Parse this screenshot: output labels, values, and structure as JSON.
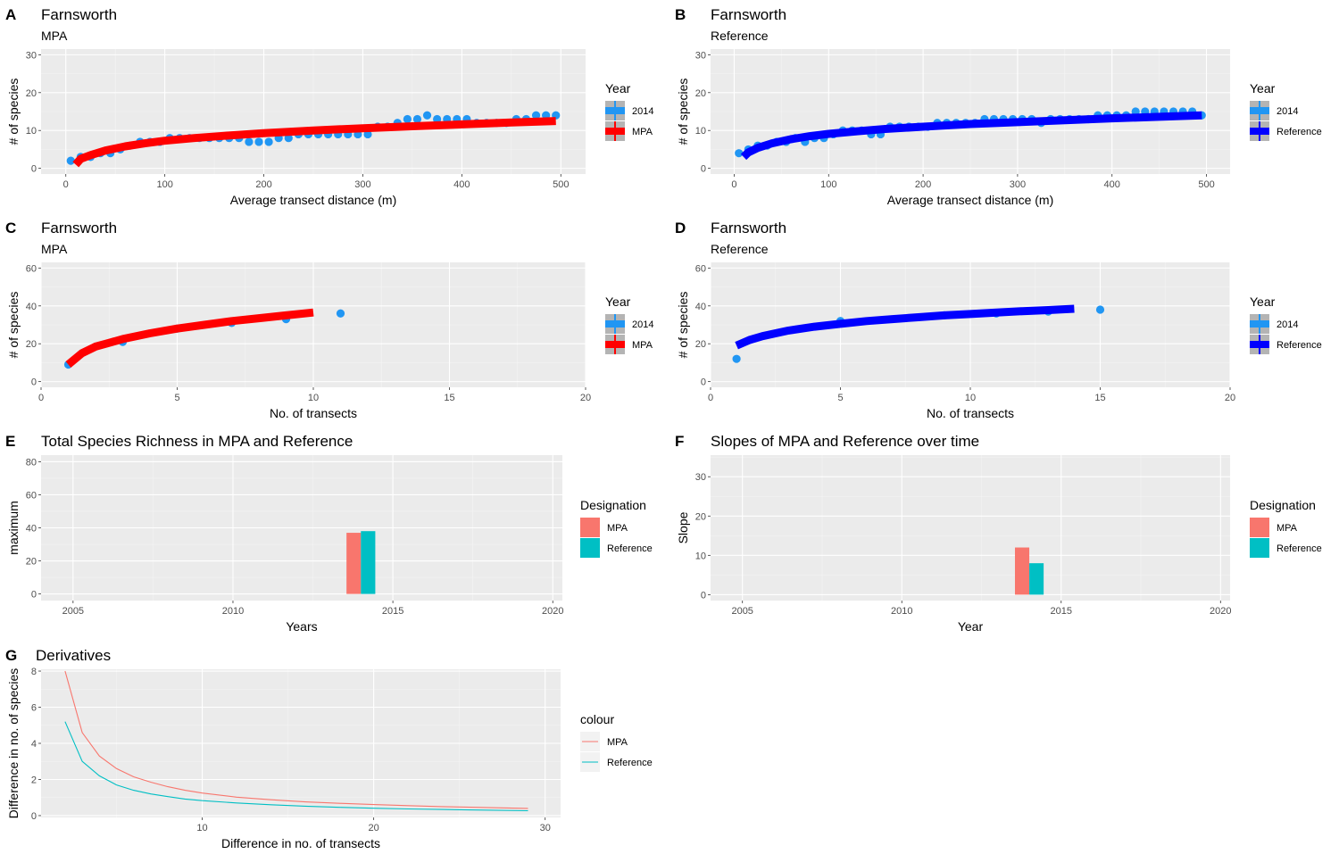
{
  "colors": {
    "panel_bg": "#EBEBEB",
    "grid_major": "#FFFFFF",
    "grid_minor": "#F4F4F4",
    "points_2014": "#2196F3",
    "mpa_line": "#FF0000",
    "reference_line": "#0000FF",
    "designation_mpa": "#F8766D",
    "designation_reference": "#00BFC4",
    "legend_key_bg": "#B4B4B4",
    "text_dark": "#000000",
    "text_axis": "#4D4D4D"
  },
  "chart_data": [
    {
      "id": "A",
      "tag": "A",
      "type": "scatter",
      "title": "Farnsworth",
      "subtitle": "MPA",
      "xlabel": "Average transect distance (m)",
      "ylabel": "# of species",
      "xlim": [
        -25,
        525
      ],
      "ylim": [
        -1.5,
        31.5
      ],
      "xticks": [
        0,
        100,
        200,
        300,
        400,
        500
      ],
      "xtick_labels": [
        "0",
        "100",
        "200",
        "300",
        "400",
        "500"
      ],
      "yticks": [
        0,
        10,
        20,
        30
      ],
      "ytick_labels": [
        "0",
        "10",
        "20",
        "30"
      ],
      "grid": true,
      "legend": {
        "title": "Year",
        "position": "right",
        "entries": [
          {
            "label": "2014",
            "kind": "point",
            "color": "#2196F3"
          },
          {
            "label": "MPA",
            "kind": "line",
            "color": "#FF0000"
          }
        ]
      },
      "points": {
        "name": "2014",
        "x": [
          5,
          15,
          25,
          35,
          45,
          55,
          65,
          75,
          85,
          95,
          105,
          115,
          125,
          135,
          145,
          155,
          165,
          175,
          185,
          195,
          205,
          215,
          225,
          235,
          245,
          255,
          265,
          275,
          285,
          295,
          305,
          315,
          325,
          335,
          345,
          355,
          365,
          375,
          385,
          395,
          405,
          415,
          425,
          435,
          445,
          455,
          465,
          475,
          485,
          495
        ],
        "y": [
          2,
          3,
          3,
          4,
          4,
          5,
          6,
          7,
          7,
          7,
          8,
          8,
          8,
          8,
          8,
          8,
          8,
          8,
          7,
          7,
          7,
          8,
          8,
          9,
          9,
          9,
          9,
          9,
          9,
          9,
          9,
          11,
          11,
          12,
          13,
          13,
          14,
          13,
          13,
          13,
          13,
          12,
          12,
          12,
          12,
          13,
          13,
          14,
          14,
          14
        ]
      },
      "curve": {
        "name": "MPA",
        "x": [
          10,
          15,
          25,
          40,
          60,
          80,
          100,
          130,
          160,
          200,
          250,
          300,
          350,
          400,
          450,
          495
        ],
        "y": [
          1,
          2.5,
          3.5,
          4.7,
          5.8,
          6.6,
          7.3,
          8,
          8.6,
          9.3,
          10,
          10.6,
          11.1,
          11.6,
          12.1,
          12.5
        ]
      }
    },
    {
      "id": "B",
      "tag": "B",
      "type": "scatter",
      "title": "Farnsworth",
      "subtitle": "Reference",
      "xlabel": "Average transect distance (m)",
      "ylabel": "# of species",
      "xlim": [
        -25,
        525
      ],
      "ylim": [
        -1.5,
        31.5
      ],
      "xticks": [
        0,
        100,
        200,
        300,
        400,
        500
      ],
      "xtick_labels": [
        "0",
        "100",
        "200",
        "300",
        "400",
        "500"
      ],
      "yticks": [
        0,
        10,
        20,
        30
      ],
      "ytick_labels": [
        "0",
        "10",
        "20",
        "30"
      ],
      "grid": true,
      "legend": {
        "title": "Year",
        "position": "right",
        "entries": [
          {
            "label": "2014",
            "kind": "point",
            "color": "#2196F3"
          },
          {
            "label": "Reference",
            "kind": "line",
            "color": "#0000FF"
          }
        ]
      },
      "points": {
        "name": "2014",
        "x": [
          5,
          15,
          25,
          35,
          45,
          55,
          65,
          75,
          85,
          95,
          105,
          115,
          125,
          135,
          145,
          155,
          165,
          175,
          185,
          195,
          205,
          215,
          225,
          235,
          245,
          255,
          265,
          275,
          285,
          295,
          305,
          315,
          325,
          335,
          345,
          355,
          365,
          375,
          385,
          395,
          405,
          415,
          425,
          435,
          445,
          455,
          465,
          475,
          485,
          495
        ],
        "y": [
          4,
          5,
          6,
          6,
          7,
          7,
          8,
          7,
          8,
          8,
          9,
          10,
          10,
          10,
          9,
          9,
          11,
          11,
          11,
          11,
          11,
          12,
          12,
          12,
          12,
          12,
          13,
          13,
          13,
          13,
          13,
          13,
          12,
          13,
          13,
          13,
          13,
          13,
          14,
          14,
          14,
          14,
          15,
          15,
          15,
          15,
          15,
          15,
          15,
          14
        ]
      },
      "curve": {
        "name": "Reference",
        "x": [
          10,
          15,
          25,
          40,
          60,
          80,
          100,
          130,
          160,
          200,
          250,
          300,
          350,
          400,
          450,
          495
        ],
        "y": [
          3,
          4.2,
          5.4,
          6.6,
          7.7,
          8.5,
          9.1,
          9.8,
          10.4,
          11,
          11.7,
          12.2,
          12.7,
          13.2,
          13.6,
          14
        ]
      }
    },
    {
      "id": "C",
      "tag": "C",
      "type": "scatter",
      "title": "Farnsworth",
      "subtitle": "MPA",
      "xlabel": "No. of transects",
      "ylabel": "# of species",
      "xlim": [
        0,
        20
      ],
      "ylim": [
        -3,
        63
      ],
      "xticks": [
        0,
        5,
        10,
        15,
        20
      ],
      "xtick_labels": [
        "0",
        "5",
        "10",
        "15",
        "20"
      ],
      "yticks": [
        0,
        20,
        40,
        60
      ],
      "ytick_labels": [
        "0",
        "20",
        "40",
        "60"
      ],
      "grid": true,
      "legend": {
        "title": "Year",
        "position": "right",
        "entries": [
          {
            "label": "2014",
            "kind": "point",
            "color": "#2196F3"
          },
          {
            "label": "MPA",
            "kind": "line",
            "color": "#FF0000"
          }
        ]
      },
      "points": {
        "name": "2014",
        "x": [
          1,
          3,
          5,
          7,
          9,
          11
        ],
        "y": [
          9,
          21,
          28,
          31,
          33,
          36
        ]
      },
      "curve": {
        "name": "MPA",
        "x": [
          1,
          1.5,
          2,
          2.5,
          3,
          4,
          5,
          6,
          7,
          8,
          9,
          10
        ],
        "y": [
          9,
          15,
          18.5,
          20.5,
          22.5,
          25.5,
          28,
          30,
          32,
          33.5,
          35,
          36.5
        ]
      }
    },
    {
      "id": "D",
      "tag": "D",
      "type": "scatter",
      "title": "Farnsworth",
      "subtitle": "Reference",
      "xlabel": "No. of transects",
      "ylabel": "# of species",
      "xlim": [
        0,
        20
      ],
      "ylim": [
        -3,
        63
      ],
      "xticks": [
        0,
        5,
        10,
        15,
        20
      ],
      "xtick_labels": [
        "0",
        "5",
        "10",
        "15",
        "20"
      ],
      "yticks": [
        0,
        20,
        40,
        60
      ],
      "ytick_labels": [
        "0",
        "20",
        "40",
        "60"
      ],
      "grid": true,
      "legend": {
        "title": "Year",
        "position": "right",
        "entries": [
          {
            "label": "2014",
            "kind": "point",
            "color": "#2196F3"
          },
          {
            "label": "Reference",
            "kind": "line",
            "color": "#0000FF"
          }
        ]
      },
      "points": {
        "name": "2014",
        "x": [
          1,
          5,
          9,
          11,
          13,
          15
        ],
        "y": [
          12,
          32,
          35,
          36,
          37,
          38
        ]
      },
      "curve": {
        "name": "Reference",
        "x": [
          1,
          1.5,
          2,
          3,
          4,
          5,
          6,
          7,
          8,
          9,
          10,
          11,
          12,
          13,
          14
        ],
        "y": [
          19,
          22,
          24,
          27,
          29,
          30.5,
          32,
          33,
          34,
          35,
          35.7,
          36.5,
          37.2,
          37.8,
          38.5
        ]
      }
    },
    {
      "id": "E",
      "tag": "E",
      "type": "bar",
      "title": "Total Species Richness in MPA and Reference",
      "subtitle": "",
      "xlabel": "Years",
      "ylabel": "maximum",
      "xlim": [
        2004,
        2020.3
      ],
      "ylim": [
        -4,
        84
      ],
      "xticks": [
        2005,
        2010,
        2015,
        2020
      ],
      "xtick_labels": [
        "2005",
        "2010",
        "2015",
        "2020"
      ],
      "yticks": [
        0,
        20,
        40,
        60,
        80
      ],
      "ytick_labels": [
        "0",
        "20",
        "40",
        "60",
        "80"
      ],
      "grid": true,
      "legend": {
        "title": "Designation",
        "position": "right",
        "entries": [
          {
            "label": "MPA",
            "kind": "fill",
            "color": "#F8766D"
          },
          {
            "label": "Reference",
            "kind": "fill",
            "color": "#00BFC4"
          }
        ]
      },
      "categories": [
        2014
      ],
      "series": [
        {
          "name": "MPA",
          "values": [
            37
          ],
          "color": "#F8766D"
        },
        {
          "name": "Reference",
          "values": [
            38
          ],
          "color": "#00BFC4"
        }
      ],
      "bar_width": 0.45
    },
    {
      "id": "F",
      "tag": "F",
      "type": "bar",
      "title": "Slopes of MPA and Reference over time",
      "subtitle": "",
      "xlabel": "Year",
      "ylabel": "Slope",
      "xlim": [
        2004,
        2020.3
      ],
      "ylim": [
        -1.5,
        35.5
      ],
      "xticks": [
        2005,
        2010,
        2015,
        2020
      ],
      "xtick_labels": [
        "2005",
        "2010",
        "2015",
        "2020"
      ],
      "yticks": [
        0,
        10,
        20,
        30
      ],
      "ytick_labels": [
        "0",
        "10",
        "20",
        "30"
      ],
      "grid": true,
      "legend": {
        "title": "Designation",
        "position": "right",
        "entries": [
          {
            "label": "MPA",
            "kind": "fill",
            "color": "#F8766D"
          },
          {
            "label": "Reference",
            "kind": "fill",
            "color": "#00BFC4"
          }
        ]
      },
      "categories": [
        2014
      ],
      "series": [
        {
          "name": "MPA",
          "values": [
            12
          ],
          "color": "#F8766D"
        },
        {
          "name": "Reference",
          "values": [
            8
          ],
          "color": "#00BFC4"
        }
      ],
      "bar_width": 0.45
    },
    {
      "id": "G",
      "tag": "G",
      "type": "line",
      "title": "Derivatives",
      "subtitle": "",
      "xlabel": "Difference in no. of transects",
      "ylabel": "Difference in no. of species",
      "xlim": [
        0.6,
        30.9
      ],
      "ylim": [
        -0.1,
        8.1
      ],
      "xticks": [
        10,
        20,
        30
      ],
      "xtick_labels": [
        "10",
        "20",
        "30"
      ],
      "yticks": [
        0,
        2,
        4,
        6,
        8
      ],
      "ytick_labels": [
        "0",
        "2",
        "4",
        "6",
        "8"
      ],
      "grid": true,
      "legend": {
        "title": "colour",
        "position": "right",
        "entries": [
          {
            "label": "MPA",
            "kind": "thin-line",
            "color": "#F8766D"
          },
          {
            "label": "Reference",
            "kind": "thin-line",
            "color": "#00BFC4"
          }
        ]
      },
      "x": [
        2,
        3,
        4,
        5,
        6,
        7,
        8,
        9,
        10,
        12,
        14,
        16,
        18,
        20,
        22,
        24,
        26,
        29
      ],
      "series": [
        {
          "name": "MPA",
          "color": "#F8766D",
          "values": [
            8.0,
            4.6,
            3.3,
            2.6,
            2.15,
            1.85,
            1.6,
            1.4,
            1.25,
            1.02,
            0.88,
            0.76,
            0.68,
            0.61,
            0.55,
            0.5,
            0.46,
            0.4
          ]
        },
        {
          "name": "Reference",
          "color": "#00BFC4",
          "values": [
            5.2,
            3.0,
            2.2,
            1.7,
            1.4,
            1.2,
            1.05,
            0.92,
            0.83,
            0.7,
            0.6,
            0.52,
            0.46,
            0.41,
            0.37,
            0.34,
            0.31,
            0.27
          ]
        }
      ]
    }
  ]
}
